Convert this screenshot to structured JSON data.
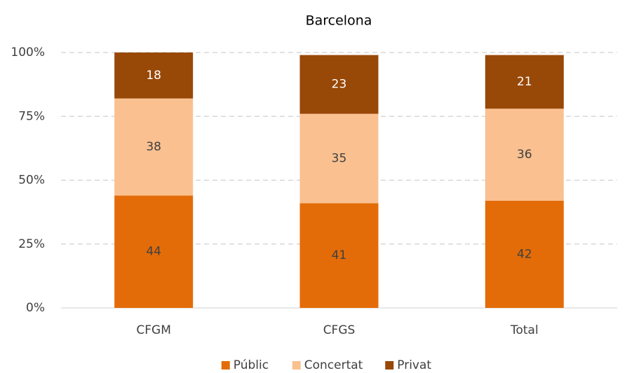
{
  "chart_data": {
    "type": "stacked_bar",
    "title": "Barcelona",
    "categories": [
      "CFGM",
      "CFGS",
      "Total"
    ],
    "series": [
      {
        "name": "Públic",
        "color": "#e36c09",
        "values": [
          44,
          41,
          42
        ]
      },
      {
        "name": "Concertat",
        "color": "#fac090",
        "values": [
          38,
          35,
          36
        ]
      },
      {
        "name": "Privat",
        "color": "#984807",
        "values": [
          18,
          23,
          21
        ]
      }
    ],
    "ylim": [
      0,
      100
    ],
    "yticks": [
      {
        "value": 0,
        "label": "0%"
      },
      {
        "value": 25,
        "label": "25%"
      },
      {
        "value": 50,
        "label": "50%"
      },
      {
        "value": 75,
        "label": "75%"
      },
      {
        "value": 100,
        "label": "100%"
      }
    ],
    "grid": true,
    "legend": "bottom"
  }
}
